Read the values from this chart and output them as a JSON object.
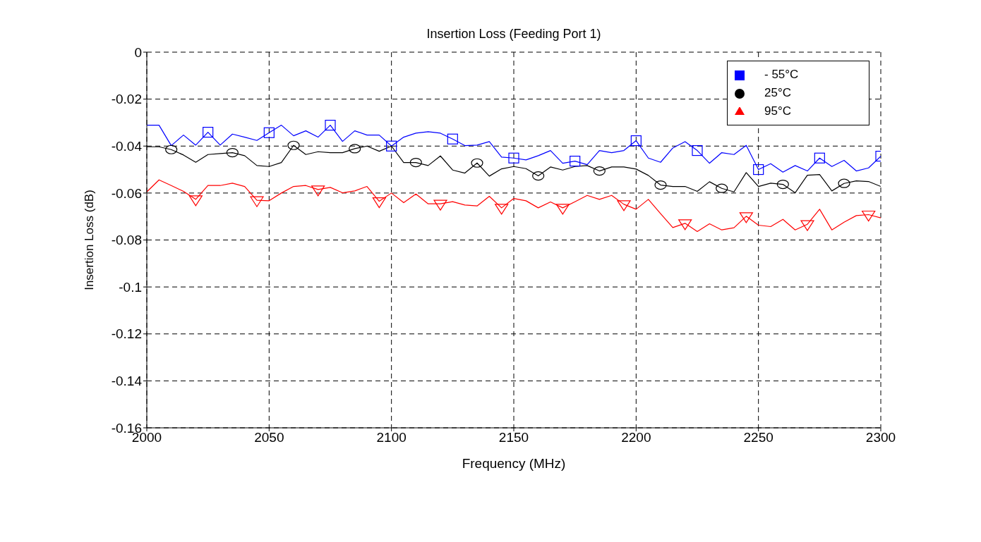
{
  "chart_data": {
    "type": "line",
    "title": "Insertion Loss (Feeding Port 1)",
    "xlabel": "Frequency (MHz)",
    "ylabel": "Insertion Loss (dB)",
    "x": [
      2000,
      2005,
      2010,
      2015,
      2020,
      2025,
      2030,
      2035,
      2040,
      2045,
      2050,
      2055,
      2060,
      2065,
      2070,
      2075,
      2080,
      2085,
      2090,
      2095,
      2100,
      2105,
      2110,
      2115,
      2120,
      2125,
      2130,
      2135,
      2140,
      2145,
      2150,
      2155,
      2160,
      2165,
      2170,
      2175,
      2180,
      2185,
      2190,
      2195,
      2200,
      2205,
      2210,
      2215,
      2220,
      2225,
      2230,
      2235,
      2240,
      2245,
      2250,
      2255,
      2260,
      2265,
      2270,
      2275,
      2280,
      2285,
      2290,
      2295,
      2300
    ],
    "series": [
      {
        "color": "#0000ff",
        "marker": "none",
        "values": [
          -0.0311,
          -0.0311,
          -0.0398,
          -0.0353,
          -0.0396,
          -0.0341,
          -0.0396,
          -0.0349,
          -0.0362,
          -0.0376,
          -0.0343,
          -0.0311,
          -0.0356,
          -0.0335,
          -0.0362,
          -0.0311,
          -0.038,
          -0.0335,
          -0.0353,
          -0.0353,
          -0.04,
          -0.0362,
          -0.0345,
          -0.0339,
          -0.0345,
          -0.037,
          -0.0398,
          -0.0396,
          -0.0381,
          -0.0447,
          -0.0451,
          -0.0459,
          -0.0441,
          -0.0419,
          -0.0473,
          -0.0464,
          -0.0479,
          -0.0419,
          -0.0428,
          -0.0419,
          -0.0377,
          -0.0451,
          -0.0469,
          -0.0408,
          -0.0381,
          -0.0419,
          -0.0473,
          -0.0428,
          -0.0436,
          -0.0397,
          -0.05,
          -0.0475,
          -0.0511,
          -0.0483,
          -0.0506,
          -0.0451,
          -0.0487,
          -0.0461,
          -0.0506,
          -0.0493,
          -0.0443
        ]
      },
      {
        "color": "#000000",
        "marker": "none",
        "values": [
          -0.0403,
          -0.0403,
          -0.0415,
          -0.0438,
          -0.0469,
          -0.0436,
          -0.0432,
          -0.0428,
          -0.0441,
          -0.0483,
          -0.0487,
          -0.047,
          -0.0397,
          -0.0436,
          -0.0424,
          -0.0428,
          -0.0428,
          -0.0411,
          -0.04,
          -0.0422,
          -0.04,
          -0.047,
          -0.047,
          -0.0483,
          -0.0442,
          -0.0502,
          -0.0515,
          -0.0472,
          -0.0528,
          -0.0497,
          -0.0487,
          -0.0496,
          -0.0527,
          -0.0489,
          -0.0502,
          -0.0487,
          -0.0483,
          -0.0506,
          -0.0489,
          -0.0489,
          -0.0498,
          -0.0525,
          -0.0566,
          -0.0572,
          -0.0572,
          -0.0593,
          -0.0552,
          -0.058,
          -0.0595,
          -0.0513,
          -0.0572,
          -0.0558,
          -0.0563,
          -0.0599,
          -0.0524,
          -0.0521,
          -0.0591,
          -0.0559,
          -0.0548,
          -0.0551,
          -0.0572
        ]
      },
      {
        "color": "#ff0000",
        "marker": "none",
        "values": [
          -0.0595,
          -0.0544,
          -0.0568,
          -0.0593,
          -0.0627,
          -0.0568,
          -0.0568,
          -0.0558,
          -0.0572,
          -0.0631,
          -0.0633,
          -0.06,
          -0.0572,
          -0.0568,
          -0.0585,
          -0.0576,
          -0.0599,
          -0.0591,
          -0.0572,
          -0.0635,
          -0.06,
          -0.0641,
          -0.0604,
          -0.0646,
          -0.0646,
          -0.0637,
          -0.0651,
          -0.0655,
          -0.0614,
          -0.0663,
          -0.0623,
          -0.0633,
          -0.0663,
          -0.0638,
          -0.0663,
          -0.0637,
          -0.061,
          -0.0627,
          -0.061,
          -0.0648,
          -0.0669,
          -0.0627,
          -0.0688,
          -0.0747,
          -0.0729,
          -0.0764,
          -0.0731,
          -0.0757,
          -0.0748,
          -0.0699,
          -0.0737,
          -0.0743,
          -0.0712,
          -0.0757,
          -0.0733,
          -0.0669,
          -0.0757,
          -0.0724,
          -0.0696,
          -0.0692,
          -0.0706
        ]
      },
      {
        "type": "scatter",
        "name": "- 55°C",
        "color": "#0000ff",
        "marker": "square",
        "x": [
          2025,
          2050,
          2075,
          2100,
          2125,
          2150,
          2175,
          2200,
          2225,
          2250,
          2275,
          2300
        ],
        "values": [
          -0.0341,
          -0.0343,
          -0.0311,
          -0.04,
          -0.037,
          -0.0451,
          -0.0464,
          -0.0377,
          -0.0419,
          -0.05,
          -0.0451,
          -0.0443
        ]
      },
      {
        "type": "scatter",
        "name": "25°C",
        "color": "#000000",
        "marker": "circle",
        "x": [
          2010,
          2035,
          2060,
          2085,
          2110,
          2135,
          2160,
          2185,
          2210,
          2235,
          2260,
          2285
        ],
        "values": [
          -0.0415,
          -0.0428,
          -0.0397,
          -0.0411,
          -0.047,
          -0.0472,
          -0.0527,
          -0.0506,
          -0.0566,
          -0.058,
          -0.0563,
          -0.0559
        ]
      },
      {
        "type": "scatter",
        "name": "95°C",
        "color": "#ff0000",
        "marker": "triangle",
        "x": [
          2020,
          2045,
          2070,
          2095,
          2120,
          2145,
          2170,
          2195,
          2220,
          2245,
          2270,
          2295
        ],
        "values": [
          -0.0627,
          -0.0631,
          -0.0585,
          -0.0635,
          -0.0646,
          -0.0663,
          -0.0663,
          -0.0648,
          -0.0729,
          -0.0699,
          -0.0733,
          -0.0692
        ]
      }
    ],
    "xlim": [
      2000,
      2300
    ],
    "xticks": [
      2000,
      2050,
      2100,
      2150,
      2200,
      2250,
      2300
    ],
    "ylim": [
      -0.16,
      0
    ],
    "yticks": [
      -0.16,
      -0.14,
      -0.12,
      -0.1,
      -0.08,
      -0.06,
      -0.04,
      -0.02,
      0
    ],
    "grid": true,
    "legend": "top right"
  }
}
